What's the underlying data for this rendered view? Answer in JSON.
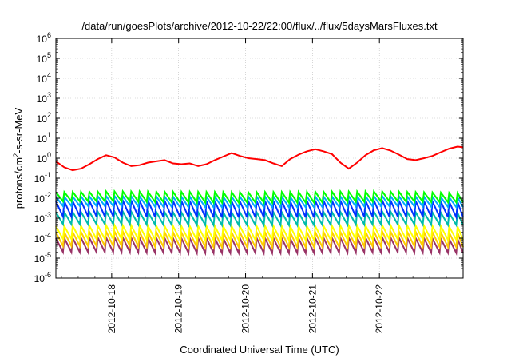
{
  "chart_data": {
    "type": "line",
    "title": "/data/run/goesPlots/archive/2012-10-22/22:00/flux/../flux/5daysMarsFluxes.txt",
    "xlabel": "Coordinated Universal Time (UTC)",
    "ylabel": "protons/cm²-s-sr-MeV",
    "ylabel_parts": [
      "protons/cm",
      "2",
      "-s-sr-MeV"
    ],
    "x_scale": "time",
    "y_scale": "log",
    "xlim": [
      "2012-10-17T04:00",
      "2012-10-23T06:00"
    ],
    "ylim": [
      1e-06,
      1000000.0
    ],
    "x_ticks": [
      "2012-10-18",
      "2012-10-19",
      "2012-10-20",
      "2012-10-21",
      "2012-10-22"
    ],
    "y_ticks": [
      {
        "value": 1e-06,
        "base": "10",
        "exp": "-6"
      },
      {
        "value": 1e-05,
        "base": "10",
        "exp": "-5"
      },
      {
        "value": 0.0001,
        "base": "10",
        "exp": "-4"
      },
      {
        "value": 0.001,
        "base": "10",
        "exp": "-3"
      },
      {
        "value": 0.01,
        "base": "10",
        "exp": "-2"
      },
      {
        "value": 0.1,
        "base": "10",
        "exp": "-1"
      },
      {
        "value": 1,
        "base": "10",
        "exp": "0"
      },
      {
        "value": 10,
        "base": "10",
        "exp": "1"
      },
      {
        "value": 100,
        "base": "10",
        "exp": "2"
      },
      {
        "value": 1000,
        "base": "10",
        "exp": "3"
      },
      {
        "value": 10000,
        "base": "10",
        "exp": "4"
      },
      {
        "value": 100000,
        "base": "10",
        "exp": "5"
      },
      {
        "value": 1000000,
        "base": "10",
        "exp": "6"
      }
    ],
    "grid": true,
    "legend": "none",
    "sawtooth_period_hours": 3,
    "series": [
      {
        "color": "#ff0000",
        "width": 2,
        "sawtooth": false,
        "x": [
          "2012-10-17T04:00",
          "2012-10-17T07:00",
          "2012-10-17T10:00",
          "2012-10-17T13:00",
          "2012-10-17T16:00",
          "2012-10-17T19:00",
          "2012-10-17T22:00",
          "2012-10-18T01:00",
          "2012-10-18T04:00",
          "2012-10-18T07:00",
          "2012-10-18T10:00",
          "2012-10-18T13:00",
          "2012-10-18T16:00",
          "2012-10-18T19:00",
          "2012-10-18T22:00",
          "2012-10-19T01:00",
          "2012-10-19T04:00",
          "2012-10-19T07:00",
          "2012-10-19T10:00",
          "2012-10-19T13:00",
          "2012-10-19T16:00",
          "2012-10-19T19:00",
          "2012-10-19T22:00",
          "2012-10-20T01:00",
          "2012-10-20T04:00",
          "2012-10-20T07:00",
          "2012-10-20T10:00",
          "2012-10-20T13:00",
          "2012-10-20T16:00",
          "2012-10-20T19:00",
          "2012-10-20T22:00",
          "2012-10-21T01:00",
          "2012-10-21T04:00",
          "2012-10-21T07:00",
          "2012-10-21T10:00",
          "2012-10-21T13:00",
          "2012-10-21T16:00",
          "2012-10-21T19:00",
          "2012-10-21T22:00",
          "2012-10-22T01:00",
          "2012-10-22T04:00",
          "2012-10-22T07:00",
          "2012-10-22T10:00",
          "2012-10-22T13:00",
          "2012-10-22T16:00",
          "2012-10-22T19:00",
          "2012-10-22T22:00",
          "2012-10-23T01:00",
          "2012-10-23T04:00",
          "2012-10-23T06:00"
        ],
        "y": [
          0.7,
          0.35,
          0.25,
          0.3,
          0.5,
          0.9,
          1.4,
          1.1,
          0.6,
          0.4,
          0.45,
          0.6,
          0.7,
          0.8,
          0.55,
          0.5,
          0.55,
          0.4,
          0.5,
          0.8,
          1.2,
          1.8,
          1.3,
          1.0,
          0.9,
          0.8,
          0.55,
          0.4,
          0.9,
          1.5,
          2.2,
          2.8,
          2.2,
          1.6,
          0.6,
          0.3,
          0.6,
          1.4,
          2.5,
          3.2,
          2.4,
          1.5,
          0.9,
          0.8,
          1.0,
          1.3,
          2.0,
          3.0,
          3.8,
          3.5
        ]
      },
      {
        "color": "#00ff00",
        "width": 2,
        "sawtooth": true,
        "x": [
          "2012-10-17T04:00",
          "2012-10-18T00:00",
          "2012-10-19T00:00",
          "2012-10-20T00:00",
          "2012-10-21T00:00",
          "2012-10-22T00:00",
          "2012-10-23T06:00"
        ],
        "y": [
          0.02,
          0.022,
          0.021,
          0.02,
          0.021,
          0.022,
          0.018
        ],
        "low": [
          0.007,
          0.007,
          0.006,
          0.006,
          0.006,
          0.007,
          0.006
        ]
      },
      {
        "color": "#00aaff",
        "width": 2,
        "sawtooth": true,
        "x": [
          "2012-10-17T04:00",
          "2012-10-18T00:00",
          "2012-10-19T00:00",
          "2012-10-20T00:00",
          "2012-10-21T00:00",
          "2012-10-22T00:00",
          "2012-10-23T06:00"
        ],
        "y": [
          0.012,
          0.013,
          0.012,
          0.012,
          0.012,
          0.013,
          0.011
        ],
        "low": [
          0.004,
          0.004,
          0.0035,
          0.0035,
          0.0035,
          0.004,
          0.0035
        ]
      },
      {
        "color": "#0033ff",
        "width": 2,
        "sawtooth": true,
        "x": [
          "2012-10-17T04:00",
          "2012-10-18T00:00",
          "2012-10-19T00:00",
          "2012-10-20T00:00",
          "2012-10-21T00:00",
          "2012-10-22T00:00",
          "2012-10-23T06:00"
        ],
        "y": [
          0.007,
          0.008,
          0.0075,
          0.007,
          0.0075,
          0.008,
          0.0065
        ],
        "low": [
          0.0012,
          0.0012,
          0.0011,
          0.0011,
          0.0011,
          0.0012,
          0.0011
        ]
      },
      {
        "color": "#00bbaa",
        "width": 2,
        "sawtooth": true,
        "x": [
          "2012-10-17T04:00",
          "2012-10-18T00:00",
          "2012-10-19T00:00",
          "2012-10-20T00:00",
          "2012-10-21T00:00",
          "2012-10-22T00:00",
          "2012-10-23T06:00"
        ],
        "y": [
          0.002,
          0.0022,
          0.002,
          0.002,
          0.002,
          0.0022,
          0.0018
        ],
        "low": [
          0.0005,
          0.0005,
          0.00045,
          0.00045,
          0.00045,
          0.0005,
          0.00045
        ]
      },
      {
        "color": "#ffff00",
        "width": 2,
        "sawtooth": true,
        "x": [
          "2012-10-17T04:00",
          "2012-10-18T00:00",
          "2012-10-19T00:00",
          "2012-10-20T00:00",
          "2012-10-21T00:00",
          "2012-10-22T00:00",
          "2012-10-23T06:00"
        ],
        "y": [
          0.0004,
          0.00045,
          0.0004,
          0.0004,
          0.0004,
          0.00045,
          0.00038
        ],
        "low": [
          9e-05,
          9e-05,
          8e-05,
          8e-05,
          8e-05,
          9e-05,
          8e-05
        ]
      },
      {
        "color": "#ffcc00",
        "width": 2,
        "sawtooth": true,
        "x": [
          "2012-10-17T04:00",
          "2012-10-18T00:00",
          "2012-10-19T00:00",
          "2012-10-20T00:00",
          "2012-10-21T00:00",
          "2012-10-22T00:00",
          "2012-10-23T06:00"
        ],
        "y": [
          0.0002,
          0.00022,
          0.0002,
          0.0002,
          0.0002,
          0.00022,
          0.00019
        ],
        "low": [
          4e-05,
          4e-05,
          3.5e-05,
          3.5e-05,
          3.5e-05,
          4e-05,
          3.5e-05
        ]
      },
      {
        "color": "#993366",
        "width": 2,
        "sawtooth": true,
        "x": [
          "2012-10-17T04:00",
          "2012-10-18T00:00",
          "2012-10-19T00:00",
          "2012-10-20T00:00",
          "2012-10-21T00:00",
          "2012-10-22T00:00",
          "2012-10-23T06:00"
        ],
        "y": [
          0.0001,
          0.00011,
          0.0001,
          0.0001,
          0.0001,
          0.00011,
          9e-05
        ],
        "low": [
          2e-05,
          2e-05,
          1.8e-05,
          1.8e-05,
          1.8e-05,
          2e-05,
          1.8e-05
        ]
      }
    ]
  }
}
